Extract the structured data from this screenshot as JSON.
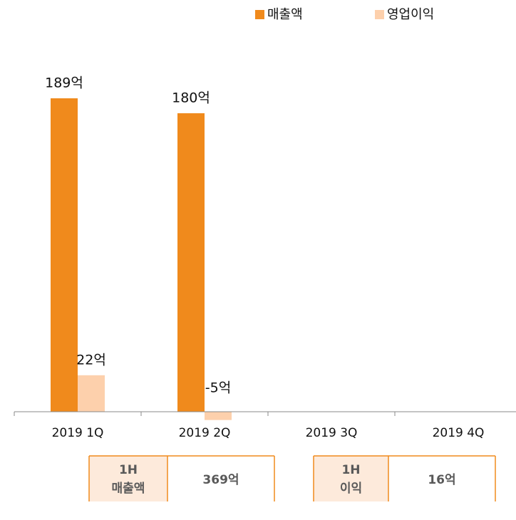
{
  "chart_data": {
    "type": "bar",
    "categories": [
      "2019 1Q",
      "2019 2Q",
      "2019 3Q",
      "2019 4Q"
    ],
    "series": [
      {
        "name": "매출액",
        "color": "#f08a1c",
        "values": [
          189,
          180,
          null,
          null
        ],
        "value_labels": [
          "189억",
          "180억",
          null,
          null
        ]
      },
      {
        "name": "영업이익",
        "color": "#fdd0ac",
        "values": [
          22,
          -5,
          null,
          null
        ],
        "value_labels": [
          "22억",
          "-5억",
          null,
          null
        ]
      }
    ],
    "legend": "top-right"
  },
  "summary": [
    {
      "label": [
        "1H",
        "매출액"
      ],
      "value": "369억"
    },
    {
      "label": [
        "1H",
        "이익"
      ],
      "value": "16억"
    }
  ]
}
